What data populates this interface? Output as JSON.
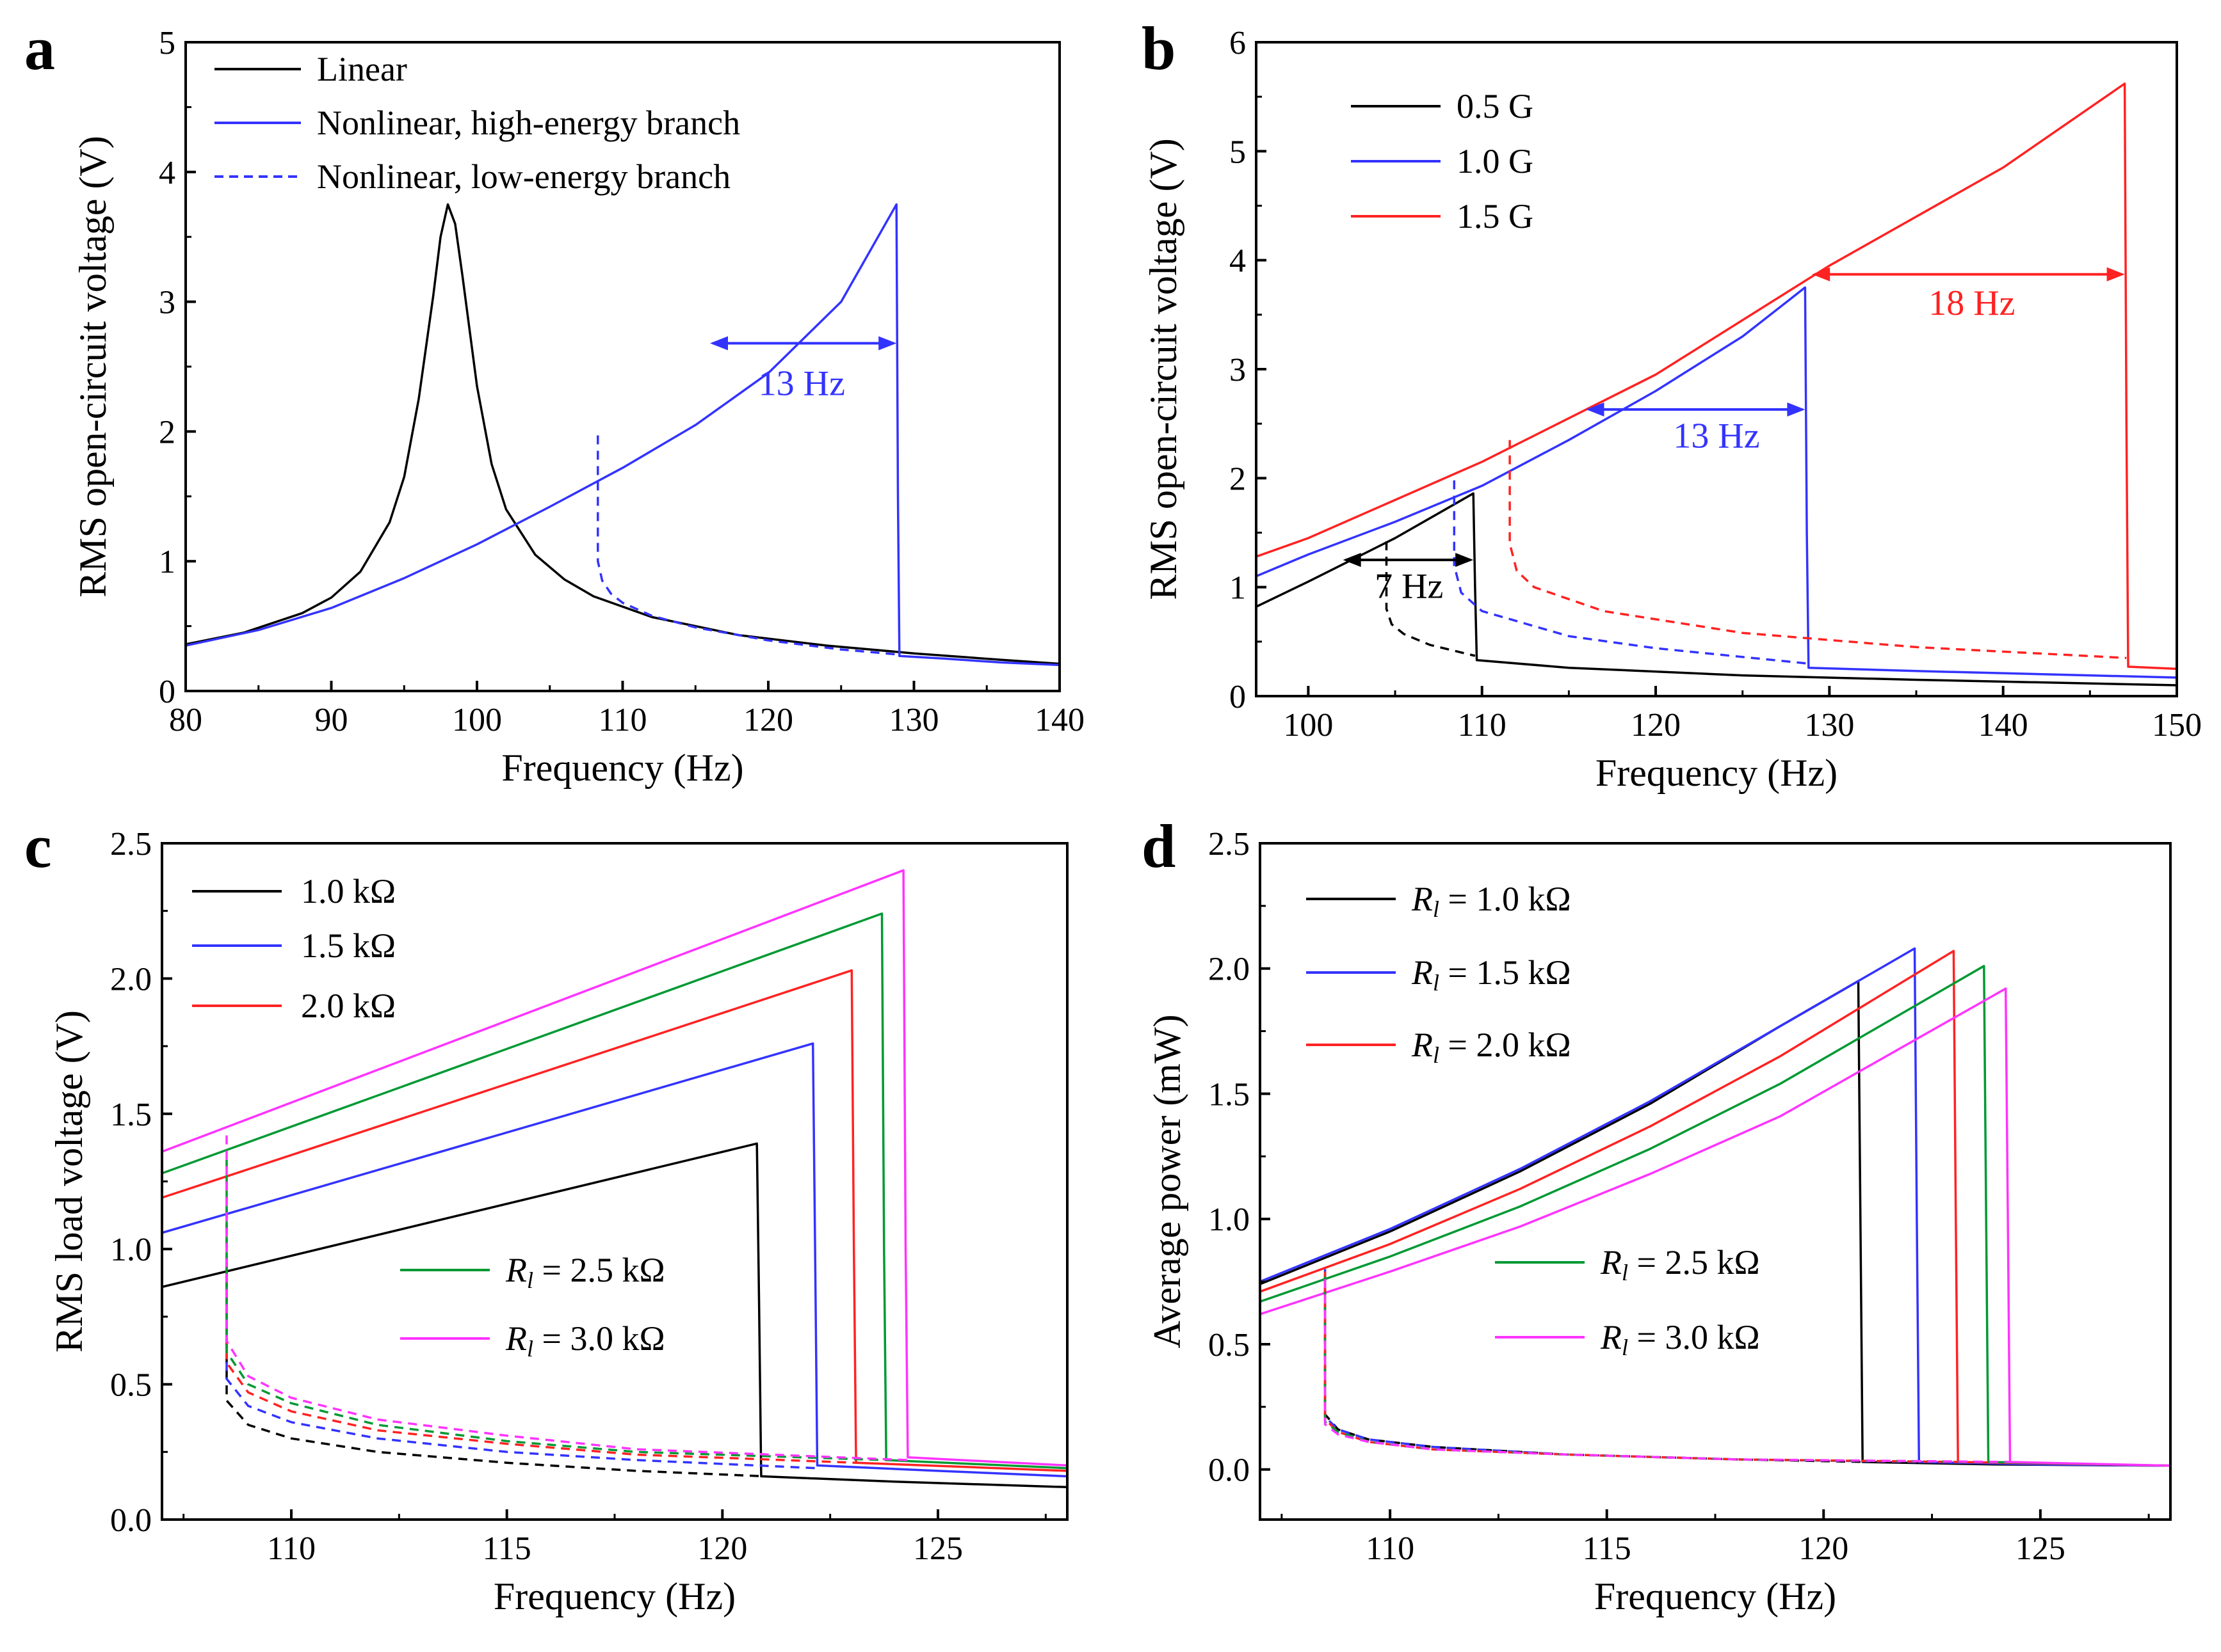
{
  "figure": {
    "background": "#ffffff"
  },
  "chart_data": [
    {
      "panel": "a",
      "type": "line",
      "xlabel": "Frequency (Hz)",
      "ylabel": "RMS open-circuit voltage (V)",
      "xlim": [
        80,
        140
      ],
      "ylim": [
        0,
        5
      ],
      "xticks": [
        80,
        90,
        100,
        110,
        120,
        130,
        140
      ],
      "yticks": [
        0,
        1,
        2,
        3,
        4,
        5
      ],
      "legend_position": "top-left",
      "series": [
        {
          "name": "Linear",
          "color": "#000000",
          "dash": "solid",
          "legend": true,
          "x": [
            80,
            84,
            88,
            90,
            92,
            94,
            95,
            96,
            97,
            97.5,
            98,
            98.5,
            99,
            100,
            101,
            102,
            104,
            106,
            108,
            112,
            118,
            124,
            130,
            136,
            140
          ],
          "y": [
            0.36,
            0.45,
            0.6,
            0.72,
            0.92,
            1.3,
            1.65,
            2.25,
            3.05,
            3.5,
            3.75,
            3.6,
            3.2,
            2.35,
            1.75,
            1.4,
            1.05,
            0.86,
            0.73,
            0.57,
            0.43,
            0.35,
            0.29,
            0.24,
            0.21
          ]
        },
        {
          "name": "Nonlinear, high-energy branch",
          "color": "#3333ff",
          "dash": "solid",
          "legend": true,
          "x": [
            80,
            85,
            90,
            95,
            100,
            105,
            110,
            115,
            120,
            125,
            128.8,
            128.9,
            129,
            132,
            136,
            140
          ],
          "y": [
            0.35,
            0.47,
            0.64,
            0.87,
            1.13,
            1.42,
            1.72,
            2.05,
            2.45,
            3.0,
            3.75,
            1.5,
            0.27,
            0.25,
            0.22,
            0.2
          ]
        },
        {
          "name": "Nonlinear, low-energy branch",
          "color": "#3333ff",
          "dash": "dashed",
          "legend": true,
          "x": [
            108.3,
            108.3,
            108.6,
            109.2,
            110,
            112,
            115,
            120,
            125,
            129
          ],
          "y": [
            1.97,
            1.0,
            0.85,
            0.75,
            0.68,
            0.58,
            0.49,
            0.39,
            0.32,
            0.28
          ]
        }
      ],
      "annotations": [
        {
          "type": "double-arrow",
          "x1": 116,
          "x2": 128.8,
          "y": 2.68,
          "color": "#3333ff"
        },
        {
          "type": "text",
          "text": "13 Hz",
          "x": 122.3,
          "y": 2.28,
          "color": "#3333ff"
        }
      ]
    },
    {
      "panel": "b",
      "type": "line",
      "xlabel": "Frequency (Hz)",
      "ylabel": "RMS open-circuit voltage (V)",
      "xlim": [
        97,
        150
      ],
      "ylim": [
        0,
        6
      ],
      "xticks": [
        100,
        110,
        120,
        130,
        140,
        150
      ],
      "yticks": [
        0,
        1,
        2,
        3,
        4,
        5,
        6
      ],
      "legend_position": "top-left",
      "series": [
        {
          "name": "0.5 G",
          "color": "#000000",
          "dash": "solid",
          "legend": true,
          "x": [
            97,
            100,
            105,
            109.5,
            109.6,
            109.7,
            115,
            125,
            135,
            150
          ],
          "y": [
            0.82,
            1.05,
            1.45,
            1.86,
            1.0,
            0.33,
            0.26,
            0.19,
            0.15,
            0.1
          ]
        },
        {
          "name": "1.0 G",
          "color": "#3333ff",
          "dash": "solid",
          "legend": true,
          "x": [
            97,
            100,
            105,
            110,
            115,
            120,
            125,
            128.6,
            128.7,
            128.8,
            135,
            145,
            150
          ],
          "y": [
            1.1,
            1.3,
            1.6,
            1.93,
            2.35,
            2.8,
            3.3,
            3.75,
            1.5,
            0.26,
            0.23,
            0.19,
            0.17
          ]
        },
        {
          "name": "1.5 G",
          "color": "#ff2222",
          "dash": "solid",
          "legend": true,
          "x": [
            97,
            100,
            110,
            120,
            130,
            140,
            147,
            147.1,
            147.2,
            150
          ],
          "y": [
            1.28,
            1.45,
            2.15,
            2.95,
            3.95,
            4.85,
            5.62,
            2.5,
            0.27,
            0.25
          ]
        },
        {
          "name": "0.5 G low-energy",
          "color": "#000000",
          "dash": "dashed",
          "legend": false,
          "x": [
            104.5,
            104.5,
            104.8,
            105.5,
            107,
            109.6
          ],
          "y": [
            1.42,
            0.8,
            0.66,
            0.57,
            0.47,
            0.37
          ]
        },
        {
          "name": "1.0 G low-energy",
          "color": "#3333ff",
          "dash": "dashed",
          "legend": false,
          "x": [
            108.4,
            108.4,
            108.8,
            110,
            115,
            120,
            128.7
          ],
          "y": [
            1.98,
            1.2,
            0.95,
            0.78,
            0.55,
            0.44,
            0.3
          ]
        },
        {
          "name": "1.5 G low-energy",
          "color": "#ff2222",
          "dash": "dashed",
          "legend": false,
          "x": [
            111.6,
            111.6,
            112,
            113,
            117,
            125,
            135,
            147.1
          ],
          "y": [
            2.35,
            1.4,
            1.15,
            1.0,
            0.78,
            0.58,
            0.45,
            0.35
          ]
        }
      ],
      "annotations": [
        {
          "type": "double-arrow",
          "x1": 102,
          "x2": 109.5,
          "y": 1.25,
          "color": "#000000"
        },
        {
          "type": "text",
          "text": "7 Hz",
          "x": 105.8,
          "y": 0.9,
          "color": "#000000"
        },
        {
          "type": "double-arrow",
          "x1": 116,
          "x2": 128.6,
          "y": 2.63,
          "color": "#3333ff"
        },
        {
          "type": "text",
          "text": "13 Hz",
          "x": 123.5,
          "y": 2.28,
          "color": "#3333ff"
        },
        {
          "type": "double-arrow",
          "x1": 129,
          "x2": 147,
          "y": 3.87,
          "color": "#ff2222"
        },
        {
          "type": "text",
          "text": "18 Hz",
          "x": 138.2,
          "y": 3.5,
          "color": "#ff2222"
        }
      ]
    },
    {
      "panel": "c",
      "type": "line",
      "xlabel": "Frequency (Hz)",
      "ylabel": "RMS load voltage (V)",
      "xlim": [
        107,
        128
      ],
      "ylim": [
        0,
        2.5
      ],
      "xticks": [
        110,
        115,
        120,
        125
      ],
      "yticks": [
        0.0,
        0.5,
        1.0,
        1.5,
        2.0,
        2.5
      ],
      "series": [
        {
          "name": "1.0 kΩ",
          "color": "#000000",
          "dash": "solid",
          "legend": true,
          "legend_italic_r": false,
          "x": [
            107,
            120.8,
            120.85,
            120.9,
            124,
            128
          ],
          "y": [
            0.86,
            1.39,
            0.8,
            0.16,
            0.14,
            0.12
          ]
        },
        {
          "name": "1.5 kΩ",
          "color": "#3333ff",
          "dash": "solid",
          "legend": true,
          "legend_italic_r": false,
          "x": [
            107,
            122.1,
            122.15,
            122.2,
            125,
            128
          ],
          "y": [
            1.06,
            1.76,
            1.0,
            0.2,
            0.18,
            0.16
          ]
        },
        {
          "name": "2.0 kΩ",
          "color": "#ff2222",
          "dash": "solid",
          "legend": true,
          "legend_italic_r": false,
          "x": [
            107,
            123.0,
            123.05,
            123.1,
            128
          ],
          "y": [
            1.19,
            2.03,
            1.0,
            0.21,
            0.18
          ]
        },
        {
          "name": "2.5 kΩ",
          "color": "#009933",
          "dash": "solid",
          "legend": true,
          "legend_italic_r": true,
          "x": [
            107,
            123.7,
            123.75,
            123.8,
            128
          ],
          "y": [
            1.28,
            2.24,
            1.0,
            0.22,
            0.19
          ]
        },
        {
          "name": "3.0 kΩ",
          "color": "#ff33ff",
          "dash": "solid",
          "legend": true,
          "legend_italic_r": true,
          "x": [
            107,
            124.2,
            124.25,
            124.3,
            128
          ],
          "y": [
            1.36,
            2.4,
            1.0,
            0.23,
            0.2
          ]
        },
        {
          "name": "1.0 kΩ low-energy",
          "color": "#000000",
          "dash": "dashed",
          "legend": false,
          "x": [
            108.5,
            108.5,
            109,
            110,
            112,
            115,
            118,
            121
          ],
          "y": [
            0.95,
            0.44,
            0.35,
            0.3,
            0.25,
            0.21,
            0.18,
            0.16
          ]
        },
        {
          "name": "1.5 kΩ low-energy",
          "color": "#3333ff",
          "dash": "dashed",
          "legend": false,
          "x": [
            108.5,
            108.5,
            109,
            110,
            112,
            115,
            118,
            122.2
          ],
          "y": [
            1.15,
            0.52,
            0.42,
            0.36,
            0.3,
            0.25,
            0.22,
            0.19
          ]
        },
        {
          "name": "2.0 kΩ low-energy",
          "color": "#ff2222",
          "dash": "dashed",
          "legend": false,
          "x": [
            108.5,
            108.5,
            109,
            110,
            112,
            115,
            118,
            123.1
          ],
          "y": [
            1.25,
            0.58,
            0.47,
            0.4,
            0.33,
            0.28,
            0.24,
            0.21
          ]
        },
        {
          "name": "2.5 kΩ low-energy",
          "color": "#009933",
          "dash": "dashed",
          "legend": false,
          "x": [
            108.5,
            108.5,
            109,
            110,
            112,
            115,
            118,
            123.8
          ],
          "y": [
            1.33,
            0.62,
            0.5,
            0.43,
            0.35,
            0.29,
            0.25,
            0.22
          ]
        },
        {
          "name": "3.0 kΩ low-energy",
          "color": "#ff33ff",
          "dash": "dashed",
          "legend": false,
          "x": [
            108.5,
            108.5,
            109,
            110,
            112,
            115,
            118,
            124.3
          ],
          "y": [
            1.42,
            0.66,
            0.53,
            0.45,
            0.37,
            0.31,
            0.26,
            0.22
          ]
        }
      ]
    },
    {
      "panel": "d",
      "type": "line",
      "xlabel": "Frequency (Hz)",
      "ylabel": "Average power (mW)",
      "xlim": [
        107,
        128
      ],
      "ylim": [
        -0.2,
        2.5
      ],
      "xticks": [
        110,
        115,
        120,
        125
      ],
      "yticks": [
        0.0,
        0.5,
        1.0,
        1.5,
        2.0,
        2.5
      ],
      "series": [
        {
          "name": "1.0 kΩ",
          "color": "#000000",
          "dash": "solid",
          "legend": true,
          "legend_italic_r": true,
          "x": [
            107,
            110,
            113,
            116,
            119,
            120.8,
            120.85,
            120.9,
            124,
            128
          ],
          "y": [
            0.74,
            0.95,
            1.19,
            1.46,
            1.77,
            1.95,
            1.0,
            0.03,
            0.02,
            0.015
          ]
        },
        {
          "name": "1.5 kΩ",
          "color": "#3333ff",
          "dash": "solid",
          "legend": true,
          "legend_italic_r": true,
          "x": [
            107,
            110,
            113,
            116,
            119,
            122.1,
            122.15,
            122.2,
            125,
            128
          ],
          "y": [
            0.75,
            0.96,
            1.2,
            1.47,
            1.77,
            2.08,
            1.0,
            0.03,
            0.02,
            0.015
          ]
        },
        {
          "name": "2.0 kΩ",
          "color": "#ff2222",
          "dash": "solid",
          "legend": true,
          "legend_italic_r": true,
          "x": [
            107,
            110,
            113,
            116,
            119,
            123.0,
            123.05,
            123.1,
            128
          ],
          "y": [
            0.71,
            0.9,
            1.12,
            1.37,
            1.65,
            2.07,
            1.0,
            0.03,
            0.015
          ]
        },
        {
          "name": "2.5 kΩ",
          "color": "#009933",
          "dash": "solid",
          "legend": true,
          "legend_italic_r": true,
          "x": [
            107,
            110,
            113,
            116,
            119,
            123.7,
            123.75,
            123.8,
            128
          ],
          "y": [
            0.67,
            0.85,
            1.05,
            1.28,
            1.54,
            2.01,
            1.0,
            0.03,
            0.015
          ]
        },
        {
          "name": "3.0 kΩ",
          "color": "#ff33ff",
          "dash": "solid",
          "legend": true,
          "legend_italic_r": true,
          "x": [
            107,
            110,
            113,
            116,
            119,
            124.2,
            124.25,
            124.3,
            128
          ],
          "y": [
            0.62,
            0.79,
            0.97,
            1.18,
            1.41,
            1.92,
            1.0,
            0.03,
            0.015
          ]
        },
        {
          "name": "1.0 kΩ low-energy",
          "color": "#000000",
          "dash": "dashed",
          "legend": false,
          "x": [
            108.5,
            108.5,
            108.8,
            109.5,
            111,
            114,
            118,
            121
          ],
          "y": [
            0.78,
            0.22,
            0.16,
            0.12,
            0.09,
            0.06,
            0.04,
            0.03
          ]
        },
        {
          "name": "1.5 kΩ low-energy",
          "color": "#3333ff",
          "dash": "dashed",
          "legend": false,
          "x": [
            108.5,
            108.5,
            108.8,
            109.5,
            111,
            114,
            118,
            122.2
          ],
          "y": [
            0.8,
            0.21,
            0.16,
            0.12,
            0.09,
            0.06,
            0.04,
            0.03
          ]
        },
        {
          "name": "2.0 kΩ low-energy",
          "color": "#ff2222",
          "dash": "dashed",
          "legend": false,
          "x": [
            108.5,
            108.5,
            108.8,
            109.5,
            111,
            114,
            118,
            123.1
          ],
          "y": [
            0.79,
            0.2,
            0.15,
            0.11,
            0.08,
            0.06,
            0.04,
            0.03
          ]
        },
        {
          "name": "2.5 kΩ low-energy",
          "color": "#009933",
          "dash": "dashed",
          "legend": false,
          "x": [
            108.5,
            108.5,
            108.8,
            109.5,
            111,
            114,
            118,
            123.8
          ],
          "y": [
            0.77,
            0.19,
            0.15,
            0.11,
            0.08,
            0.06,
            0.04,
            0.03
          ]
        },
        {
          "name": "3.0 kΩ low-energy",
          "color": "#ff33ff",
          "dash": "dashed",
          "legend": false,
          "x": [
            108.5,
            108.5,
            108.8,
            109.5,
            111,
            114,
            118,
            124.3
          ],
          "y": [
            0.76,
            0.18,
            0.14,
            0.11,
            0.08,
            0.06,
            0.04,
            0.03
          ]
        }
      ]
    }
  ],
  "legends": {
    "a": [
      "Linear",
      "Nonlinear, high-energy branch",
      "Nonlinear, low-energy branch"
    ],
    "b": [
      "0.5 G",
      "1.0 G",
      "1.5 G"
    ],
    "c_top": [
      "1.0 kΩ",
      "1.5 kΩ",
      "2.0 kΩ"
    ],
    "c_bottom": [
      "2.5 kΩ",
      "3.0 kΩ"
    ],
    "d_top": [
      "1.0 kΩ",
      "1.5 kΩ",
      "2.0 kΩ"
    ],
    "d_bottom": [
      "2.5 kΩ",
      "3.0 kΩ"
    ],
    "r_symbol": "R",
    "r_subscript": "l",
    "equals": " = "
  },
  "panel_letters": [
    "a",
    "b",
    "c",
    "d"
  ]
}
